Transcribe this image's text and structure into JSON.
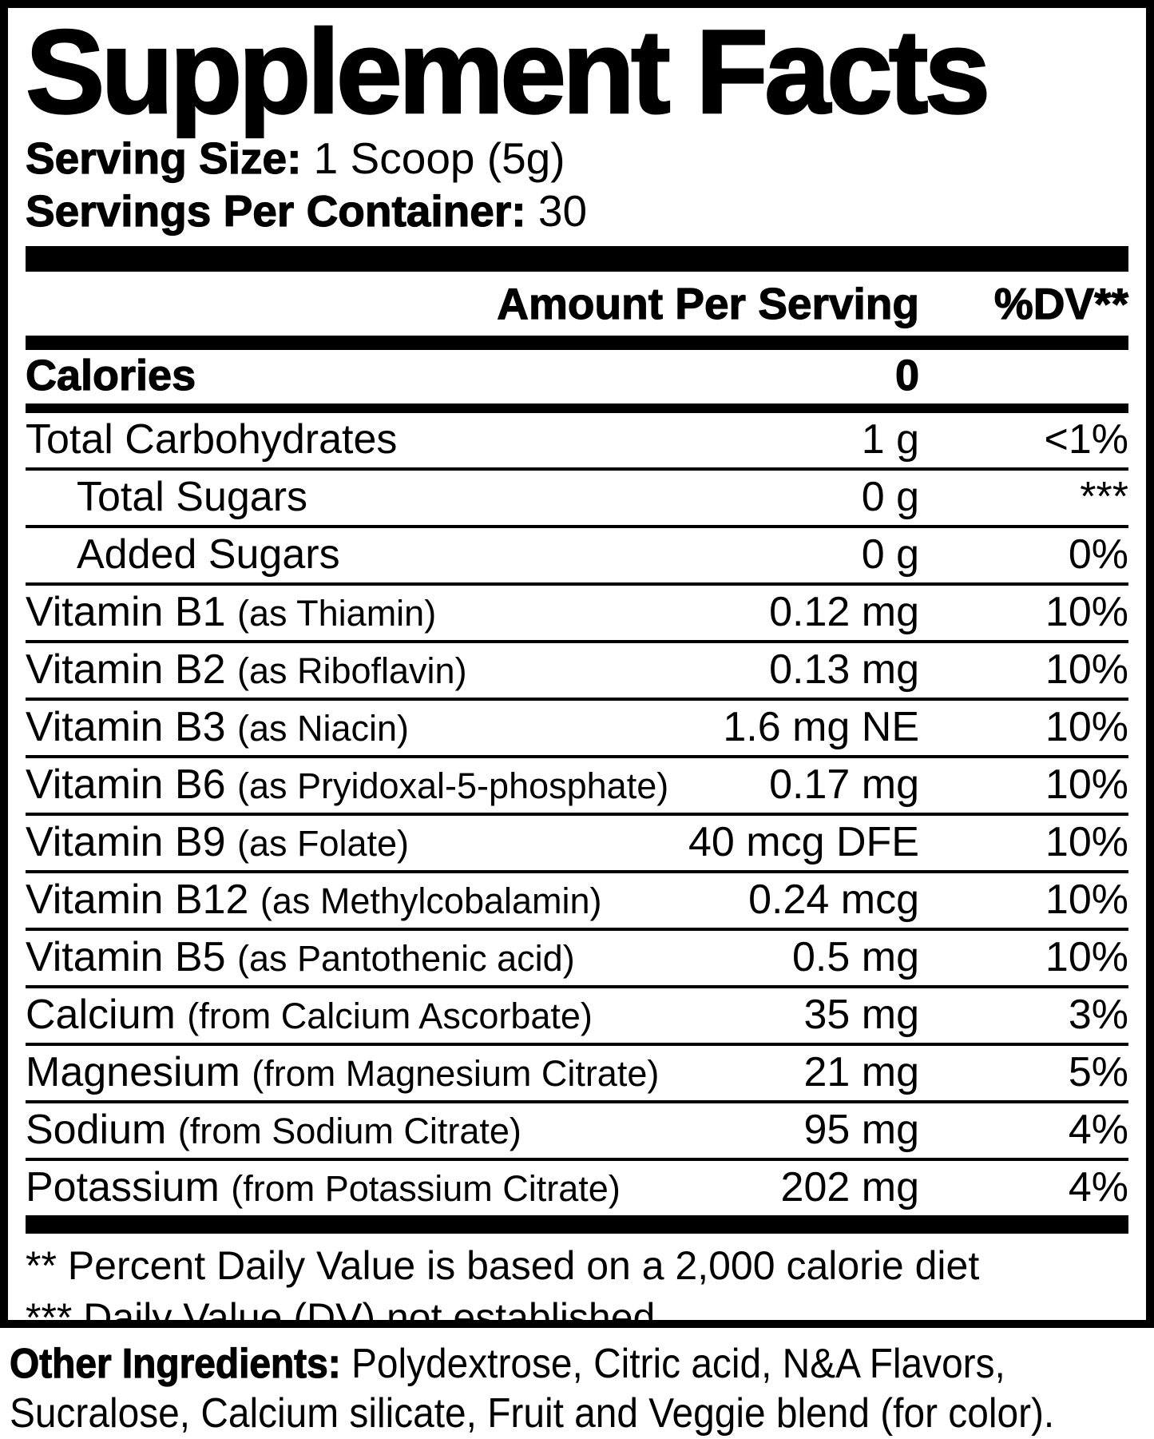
{
  "colors": {
    "ink": "#000000",
    "background": "#ffffff"
  },
  "label": {
    "title": "Supplement Facts",
    "serving": {
      "size_label": "Serving Size:",
      "size_value": " 1 Scoop (5g)",
      "count_label": "Servings Per Container:",
      "count_value": " 30"
    },
    "columns": {
      "amount": "Amount Per Serving",
      "dv": "%DV**"
    },
    "rows": [
      {
        "name": "Calories",
        "sub": "",
        "amount": "0",
        "dv": "",
        "bold": true,
        "indent": false,
        "sep": "none"
      },
      {
        "name": "Total Carbohydrates",
        "sub": "",
        "amount": "1 g",
        "dv": "<1%",
        "bold": false,
        "indent": false,
        "sep": "med"
      },
      {
        "name": "Total Sugars",
        "sub": "",
        "amount": "0 g",
        "dv": "***",
        "bold": false,
        "indent": true,
        "sep": "thin"
      },
      {
        "name": "Added Sugars",
        "sub": "",
        "amount": "0 g",
        "dv": "0%",
        "bold": false,
        "indent": true,
        "sep": "thin"
      },
      {
        "name": "Vitamin B1 ",
        "sub": "(as Thiamin)",
        "amount": "0.12 mg",
        "dv": "10%",
        "bold": false,
        "indent": false,
        "sep": "thin"
      },
      {
        "name": "Vitamin B2 ",
        "sub": "(as Riboflavin)",
        "amount": "0.13 mg",
        "dv": "10%",
        "bold": false,
        "indent": false,
        "sep": "thin"
      },
      {
        "name": "Vitamin B3 ",
        "sub": "(as Niacin)",
        "amount": "1.6 mg NE",
        "dv": "10%",
        "bold": false,
        "indent": false,
        "sep": "thin"
      },
      {
        "name": "Vitamin B6 ",
        "sub": "(as Pryidoxal-5-phosphate)",
        "amount": "0.17 mg",
        "dv": "10%",
        "bold": false,
        "indent": false,
        "sep": "thin"
      },
      {
        "name": "Vitamin B9 ",
        "sub": "(as Folate)",
        "amount": "40 mcg DFE",
        "dv": "10%",
        "bold": false,
        "indent": false,
        "sep": "thin"
      },
      {
        "name": "Vitamin B12 ",
        "sub": "(as Methylcobalamin)",
        "amount": "0.24 mcg",
        "dv": "10%",
        "bold": false,
        "indent": false,
        "sep": "thin"
      },
      {
        "name": "Vitamin B5 ",
        "sub": "(as Pantothenic acid)",
        "amount": "0.5 mg",
        "dv": "10%",
        "bold": false,
        "indent": false,
        "sep": "thin"
      },
      {
        "name": "Calcium ",
        "sub": "(from Calcium Ascorbate)",
        "amount": "35 mg",
        "dv": "3%",
        "bold": false,
        "indent": false,
        "sep": "thin"
      },
      {
        "name": "Magnesium ",
        "sub": "(from Magnesium Citrate)",
        "amount": "21 mg",
        "dv": "5%",
        "bold": false,
        "indent": false,
        "sep": "thin"
      },
      {
        "name": "Sodium ",
        "sub": "(from Sodium Citrate)",
        "amount": "95 mg",
        "dv": "4%",
        "bold": false,
        "indent": false,
        "sep": "thin"
      },
      {
        "name": "Potassium ",
        "sub": "(from Potassium Citrate)",
        "amount": "202 mg",
        "dv": "4%",
        "bold": false,
        "indent": false,
        "sep": "thin"
      }
    ],
    "footnotes": [
      "** Percent Daily Value is based on a 2,000 calorie diet",
      "*** Daily Value (DV) not established"
    ]
  },
  "other_ingredients": {
    "label": "Other Ingredients:",
    "line1_rest": " Polydextrose, Citric acid, N&A Flavors,",
    "line2": "Sucralose, Calcium silicate, Fruit and Veggie blend (for color)."
  }
}
